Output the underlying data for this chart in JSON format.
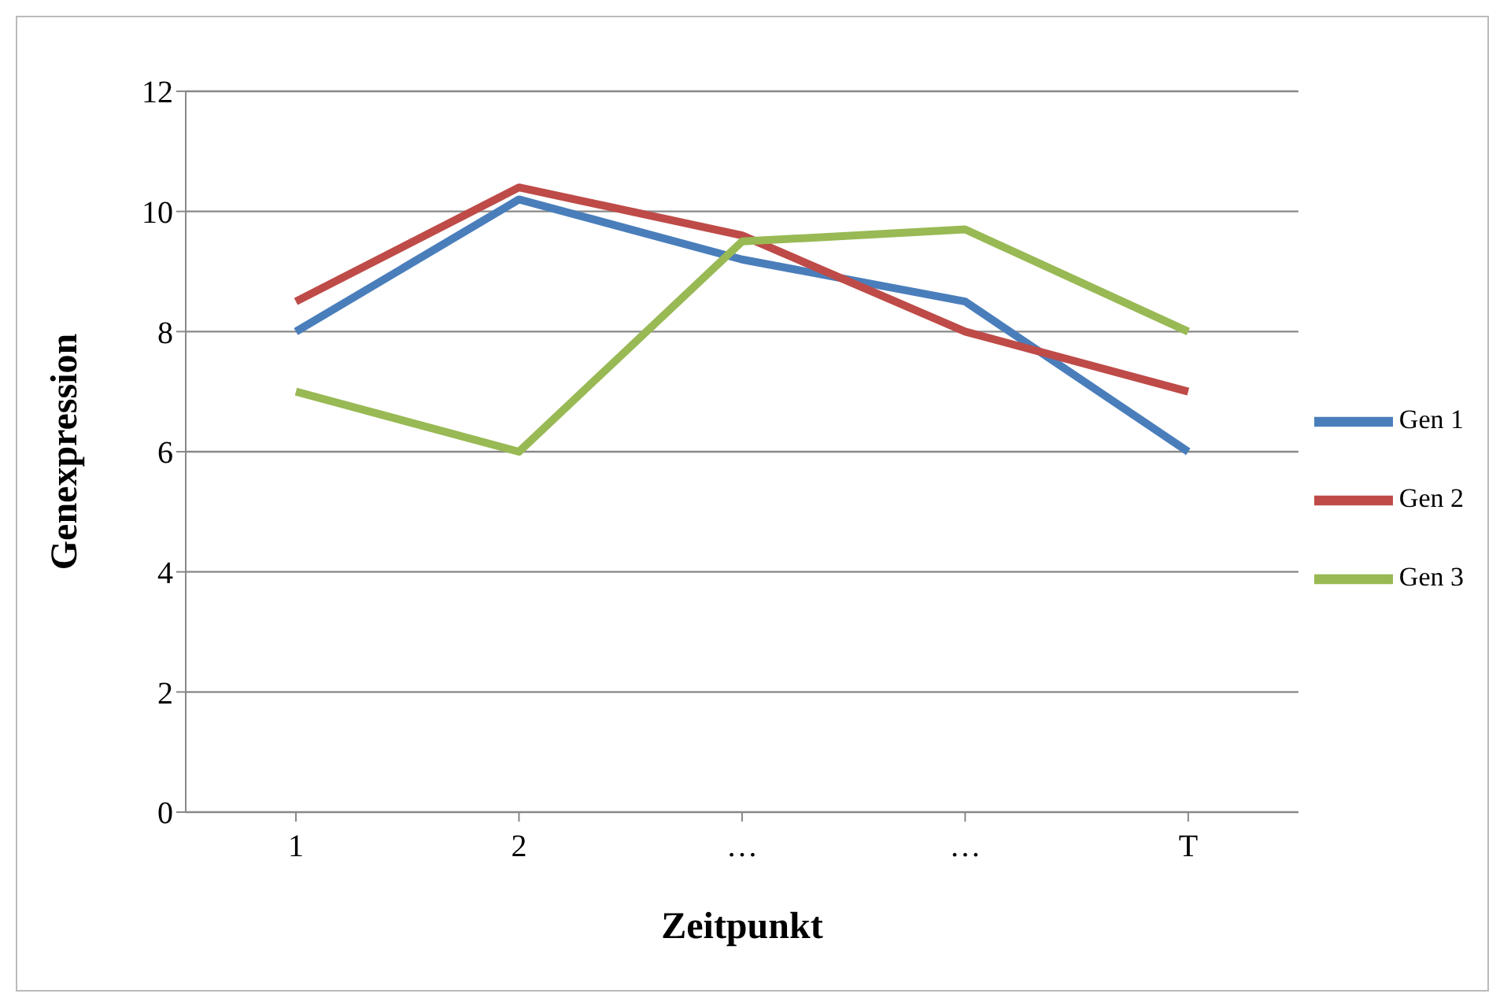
{
  "chart_data": {
    "type": "line",
    "xlabel": "Zeitpunkt",
    "ylabel": "Genexpression",
    "categories": [
      "1",
      "2",
      "…",
      "…",
      "T"
    ],
    "series": [
      {
        "name": "Gen 1",
        "color": "#4a7ebb",
        "values": [
          8,
          10.2,
          9.2,
          8.5,
          6
        ]
      },
      {
        "name": "Gen 2",
        "color": "#be4b48",
        "values": [
          8.5,
          10.4,
          9.6,
          8,
          7
        ]
      },
      {
        "name": "Gen 3",
        "color": "#98b954",
        "values": [
          7,
          6,
          9.5,
          9.7,
          8
        ]
      }
    ],
    "ylim": [
      0,
      12
    ],
    "yticks": [
      0,
      2,
      4,
      6,
      8,
      10,
      12
    ],
    "grid": "y",
    "legend": "right",
    "marker": "none",
    "line_style": "solid"
  }
}
